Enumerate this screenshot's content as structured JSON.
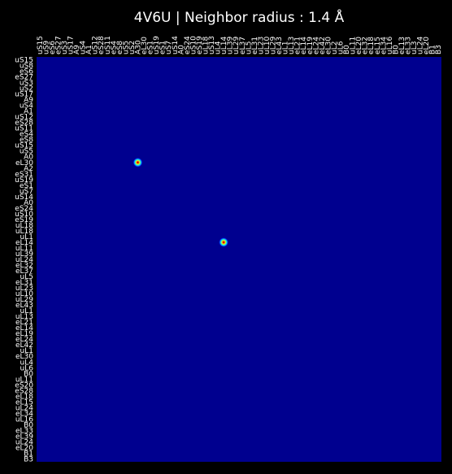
{
  "chart_data": {
    "type": "heatmap",
    "title": "4V6U | Neighbor radius : 1.4 Å",
    "xlabel": "",
    "ylabel": "",
    "colormap": "jet",
    "background_value": 0,
    "x_tick_labels": [
      "uS15",
      "uS9",
      "eS6",
      "eS27",
      "uS3",
      "uS17",
      "A9",
      "uS4",
      "A1",
      "uS12",
      "eS28",
      "uS11",
      "eS4",
      "eS8",
      "uS5",
      "uS2",
      "A30",
      "eL30",
      "eS1",
      "uS19",
      "eS1",
      "uS7",
      "uS14",
      "A0",
      "eS24",
      "uS10",
      "eS19",
      "uL18",
      "uS13",
      "uL4",
      "uL14",
      "uL39",
      "uL29",
      "eL37",
      "uL5",
      "eL31",
      "uL23",
      "uL10",
      "uL29",
      "eL43",
      "uL1",
      "uL13",
      "eL21",
      "eL14",
      "eL19",
      "eL24",
      "eL42",
      "eL30",
      "uL2",
      "uL6",
      "B0",
      "uL11",
      "eL20",
      "eL32",
      "eL18",
      "eL15",
      "eL34",
      "uL16",
      "B0",
      "eL13",
      "eL33",
      "uL3",
      "uL24",
      "eL20",
      "B1",
      "B3"
    ],
    "y_tick_labels": [
      "uS15",
      "uS8",
      "eS6",
      "eS27",
      "uS3",
      "uS2",
      "uS17",
      "A9",
      "uS4",
      "A1",
      "uS12",
      "eS28",
      "uS11",
      "eS4",
      "eS8",
      "uS15",
      "uS5",
      "A0",
      "eL30",
      "A2",
      "eS31",
      "uS19",
      "eS1",
      "uS7",
      "uS14",
      "A0",
      "eS24",
      "uS10",
      "eS19",
      "uL18",
      "uL18",
      "uL1",
      "eL14",
      "uL11",
      "uL39",
      "uL24",
      "eL32",
      "eL37",
      "uL5",
      "eL31",
      "uL23",
      "uL10",
      "uL29",
      "eL43",
      "uL1",
      "uL13",
      "eL21",
      "eL14",
      "eL19",
      "eL24",
      "eL42",
      "uL1",
      "eL30",
      "uL4",
      "uL6",
      "B0",
      "uL11",
      "eS20",
      "eS28",
      "eL18",
      "eL15",
      "uL24",
      "eL34",
      "uL16",
      "B0",
      "eL33",
      "eL39",
      "uL24",
      "eL20",
      "B1",
      "B3"
    ],
    "hotspots": [
      {
        "row": "eL30",
        "col": "A30",
        "value": 1.0
      },
      {
        "row": "eL14",
        "col": "uL14",
        "value": 1.0
      }
    ]
  }
}
